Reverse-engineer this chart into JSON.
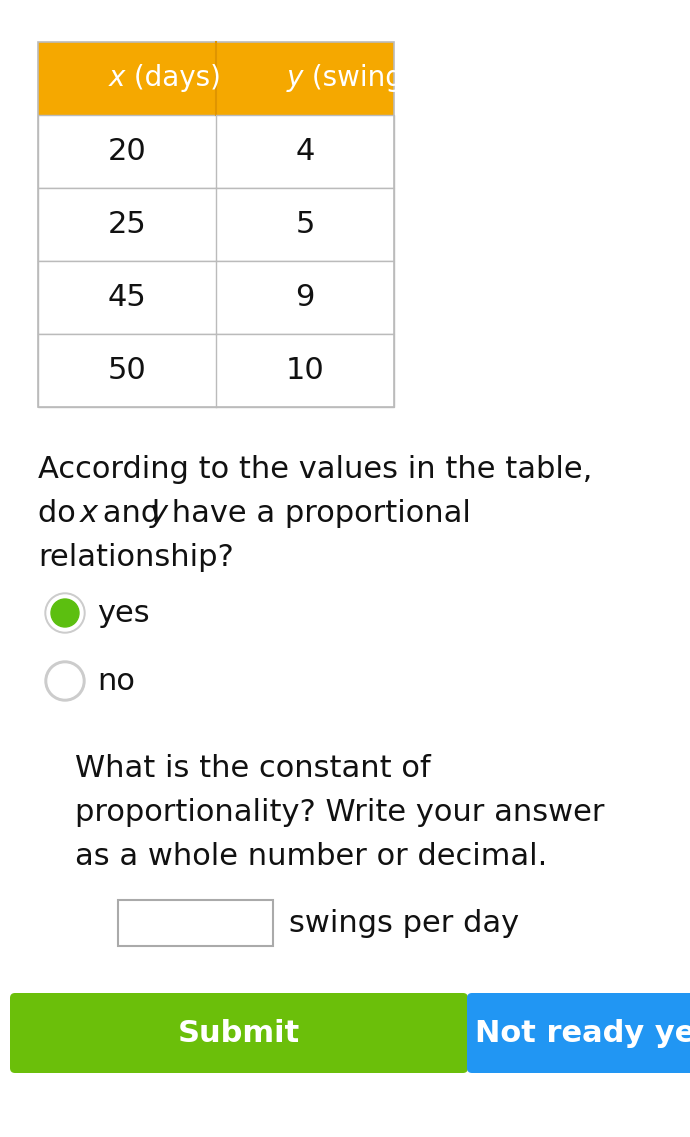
{
  "table_header": [
    "x (days)",
    "y (swings)"
  ],
  "table_data": [
    [
      20,
      4
    ],
    [
      25,
      5
    ],
    [
      45,
      9
    ],
    [
      50,
      10
    ]
  ],
  "header_bg": "#F5A800",
  "header_text_color": "#FFFFFF",
  "table_border_color": "#BBBBBB",
  "cell_bg": "#FFFFFF",
  "cell_text_color": "#111111",
  "option_yes": "yes",
  "option_no": "no",
  "yes_selected": true,
  "q2_line1": "What is the constant of",
  "q2_line2": "proportionality? Write your answer",
  "q2_line3": "as a whole number or decimal.",
  "input_label": "swings per day",
  "submit_text": "Submit",
  "submit_bg": "#6BBF0A",
  "not_ready_text": "Not ready yet",
  "not_ready_bg": "#2196F3",
  "radio_green": "#5CBF10",
  "radio_border_color": "#CCCCCC",
  "bg_color": "#FFFFFF",
  "text_color": "#111111"
}
